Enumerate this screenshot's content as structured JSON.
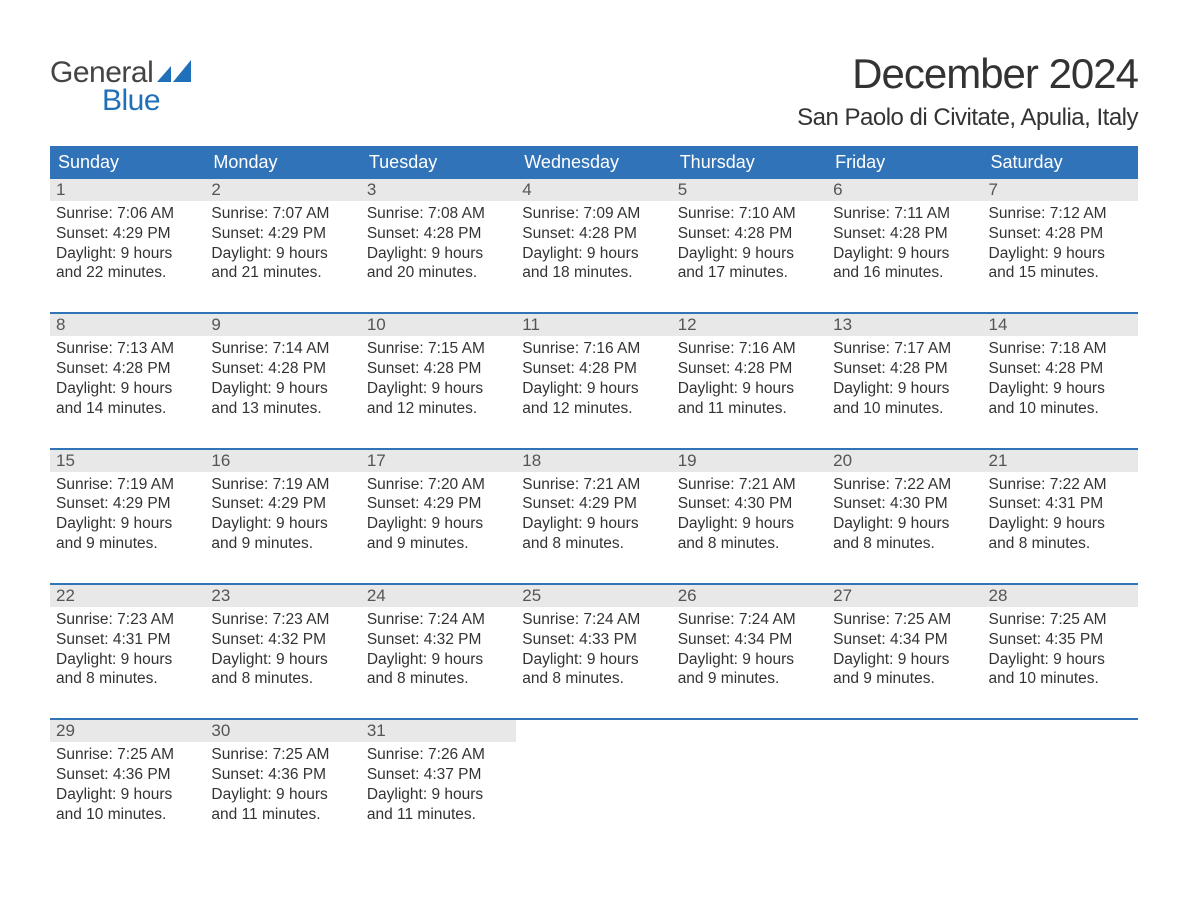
{
  "logo": {
    "text1": "General",
    "text2": "Blue",
    "icon_color": "#1f70b8"
  },
  "title": "December 2024",
  "location": "San Paolo di Civitate, Apulia, Italy",
  "colors": {
    "header_bg": "#3173b8",
    "header_text": "#ffffff",
    "daynum_bg": "#e8e8e8",
    "daynum_text": "#555555",
    "body_text": "#333333",
    "week_border": "#3173b8",
    "background": "#ffffff"
  },
  "typography": {
    "title_fontsize": 42,
    "location_fontsize": 24,
    "dayheader_fontsize": 18,
    "daynum_fontsize": 17,
    "body_fontsize": 15.5,
    "logo_fontsize": 30
  },
  "day_headers": [
    "Sunday",
    "Monday",
    "Tuesday",
    "Wednesday",
    "Thursday",
    "Friday",
    "Saturday"
  ],
  "weeks": [
    [
      {
        "num": "1",
        "sunrise": "Sunrise: 7:06 AM",
        "sunset": "Sunset: 4:29 PM",
        "d1": "Daylight: 9 hours",
        "d2": "and 22 minutes."
      },
      {
        "num": "2",
        "sunrise": "Sunrise: 7:07 AM",
        "sunset": "Sunset: 4:29 PM",
        "d1": "Daylight: 9 hours",
        "d2": "and 21 minutes."
      },
      {
        "num": "3",
        "sunrise": "Sunrise: 7:08 AM",
        "sunset": "Sunset: 4:28 PM",
        "d1": "Daylight: 9 hours",
        "d2": "and 20 minutes."
      },
      {
        "num": "4",
        "sunrise": "Sunrise: 7:09 AM",
        "sunset": "Sunset: 4:28 PM",
        "d1": "Daylight: 9 hours",
        "d2": "and 18 minutes."
      },
      {
        "num": "5",
        "sunrise": "Sunrise: 7:10 AM",
        "sunset": "Sunset: 4:28 PM",
        "d1": "Daylight: 9 hours",
        "d2": "and 17 minutes."
      },
      {
        "num": "6",
        "sunrise": "Sunrise: 7:11 AM",
        "sunset": "Sunset: 4:28 PM",
        "d1": "Daylight: 9 hours",
        "d2": "and 16 minutes."
      },
      {
        "num": "7",
        "sunrise": "Sunrise: 7:12 AM",
        "sunset": "Sunset: 4:28 PM",
        "d1": "Daylight: 9 hours",
        "d2": "and 15 minutes."
      }
    ],
    [
      {
        "num": "8",
        "sunrise": "Sunrise: 7:13 AM",
        "sunset": "Sunset: 4:28 PM",
        "d1": "Daylight: 9 hours",
        "d2": "and 14 minutes."
      },
      {
        "num": "9",
        "sunrise": "Sunrise: 7:14 AM",
        "sunset": "Sunset: 4:28 PM",
        "d1": "Daylight: 9 hours",
        "d2": "and 13 minutes."
      },
      {
        "num": "10",
        "sunrise": "Sunrise: 7:15 AM",
        "sunset": "Sunset: 4:28 PM",
        "d1": "Daylight: 9 hours",
        "d2": "and 12 minutes."
      },
      {
        "num": "11",
        "sunrise": "Sunrise: 7:16 AM",
        "sunset": "Sunset: 4:28 PM",
        "d1": "Daylight: 9 hours",
        "d2": "and 12 minutes."
      },
      {
        "num": "12",
        "sunrise": "Sunrise: 7:16 AM",
        "sunset": "Sunset: 4:28 PM",
        "d1": "Daylight: 9 hours",
        "d2": "and 11 minutes."
      },
      {
        "num": "13",
        "sunrise": "Sunrise: 7:17 AM",
        "sunset": "Sunset: 4:28 PM",
        "d1": "Daylight: 9 hours",
        "d2": "and 10 minutes."
      },
      {
        "num": "14",
        "sunrise": "Sunrise: 7:18 AM",
        "sunset": "Sunset: 4:28 PM",
        "d1": "Daylight: 9 hours",
        "d2": "and 10 minutes."
      }
    ],
    [
      {
        "num": "15",
        "sunrise": "Sunrise: 7:19 AM",
        "sunset": "Sunset: 4:29 PM",
        "d1": "Daylight: 9 hours",
        "d2": "and 9 minutes."
      },
      {
        "num": "16",
        "sunrise": "Sunrise: 7:19 AM",
        "sunset": "Sunset: 4:29 PM",
        "d1": "Daylight: 9 hours",
        "d2": "and 9 minutes."
      },
      {
        "num": "17",
        "sunrise": "Sunrise: 7:20 AM",
        "sunset": "Sunset: 4:29 PM",
        "d1": "Daylight: 9 hours",
        "d2": "and 9 minutes."
      },
      {
        "num": "18",
        "sunrise": "Sunrise: 7:21 AM",
        "sunset": "Sunset: 4:29 PM",
        "d1": "Daylight: 9 hours",
        "d2": "and 8 minutes."
      },
      {
        "num": "19",
        "sunrise": "Sunrise: 7:21 AM",
        "sunset": "Sunset: 4:30 PM",
        "d1": "Daylight: 9 hours",
        "d2": "and 8 minutes."
      },
      {
        "num": "20",
        "sunrise": "Sunrise: 7:22 AM",
        "sunset": "Sunset: 4:30 PM",
        "d1": "Daylight: 9 hours",
        "d2": "and 8 minutes."
      },
      {
        "num": "21",
        "sunrise": "Sunrise: 7:22 AM",
        "sunset": "Sunset: 4:31 PM",
        "d1": "Daylight: 9 hours",
        "d2": "and 8 minutes."
      }
    ],
    [
      {
        "num": "22",
        "sunrise": "Sunrise: 7:23 AM",
        "sunset": "Sunset: 4:31 PM",
        "d1": "Daylight: 9 hours",
        "d2": "and 8 minutes."
      },
      {
        "num": "23",
        "sunrise": "Sunrise: 7:23 AM",
        "sunset": "Sunset: 4:32 PM",
        "d1": "Daylight: 9 hours",
        "d2": "and 8 minutes."
      },
      {
        "num": "24",
        "sunrise": "Sunrise: 7:24 AM",
        "sunset": "Sunset: 4:32 PM",
        "d1": "Daylight: 9 hours",
        "d2": "and 8 minutes."
      },
      {
        "num": "25",
        "sunrise": "Sunrise: 7:24 AM",
        "sunset": "Sunset: 4:33 PM",
        "d1": "Daylight: 9 hours",
        "d2": "and 8 minutes."
      },
      {
        "num": "26",
        "sunrise": "Sunrise: 7:24 AM",
        "sunset": "Sunset: 4:34 PM",
        "d1": "Daylight: 9 hours",
        "d2": "and 9 minutes."
      },
      {
        "num": "27",
        "sunrise": "Sunrise: 7:25 AM",
        "sunset": "Sunset: 4:34 PM",
        "d1": "Daylight: 9 hours",
        "d2": "and 9 minutes."
      },
      {
        "num": "28",
        "sunrise": "Sunrise: 7:25 AM",
        "sunset": "Sunset: 4:35 PM",
        "d1": "Daylight: 9 hours",
        "d2": "and 10 minutes."
      }
    ],
    [
      {
        "num": "29",
        "sunrise": "Sunrise: 7:25 AM",
        "sunset": "Sunset: 4:36 PM",
        "d1": "Daylight: 9 hours",
        "d2": "and 10 minutes."
      },
      {
        "num": "30",
        "sunrise": "Sunrise: 7:25 AM",
        "sunset": "Sunset: 4:36 PM",
        "d1": "Daylight: 9 hours",
        "d2": "and 11 minutes."
      },
      {
        "num": "31",
        "sunrise": "Sunrise: 7:26 AM",
        "sunset": "Sunset: 4:37 PM",
        "d1": "Daylight: 9 hours",
        "d2": "and 11 minutes."
      },
      null,
      null,
      null,
      null
    ]
  ]
}
